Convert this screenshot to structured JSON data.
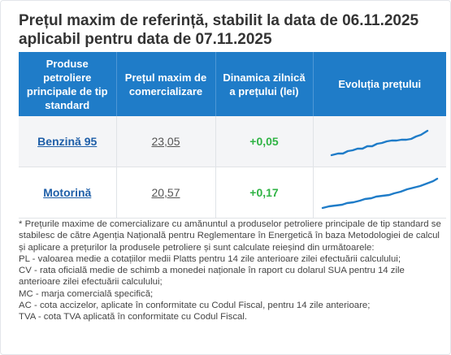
{
  "title": {
    "line1": "Prețul maxim de referință, stabilit la data de 06.11.2025",
    "line2": "aplicabil pentru data de 07.11.2025"
  },
  "table": {
    "headers": [
      "Produse petroliere principale de tip standard",
      "Prețul maxim de comercializare",
      "Dinamica zilnică a prețului (lei)",
      "Evoluția prețului"
    ],
    "rows": [
      {
        "product": "Benzină 95",
        "price": "23,05",
        "change": "+0,05",
        "trend_icon": "trend-line-up"
      },
      {
        "product": "Motorină",
        "price": "20,57",
        "change": "+0,17",
        "trend_icon": "trend-line-up"
      }
    ]
  },
  "notes": {
    "intro": "* Prețurile maxime de comercializare cu amănuntul a produselor petroliere principale de tip standard se stabilesc de către Agenția Națională pentru Reglementare în Energetică în baza Metodologiei de calcul și aplicare a prețurilor la produsele petroliere și sunt calculate reieșind din următoarele:",
    "pl": "PL - valoarea medie a cotațiilor medii Platts pentru 14 zile anterioare zilei efectuării calculului;",
    "cv": "CV - rata oficială medie de schimb a monedei naționale în raport cu dolarul SUA pentru 14 zile anterioare zilei efectuării calculului;",
    "mc": "MC - marja comercială specifică;",
    "ac": "AC - cota accizelor, aplicate în conformitate cu Codul Fiscal, pentru 14 zile anterioare;",
    "tva": "TVA - cota TVA aplicată în conformitate cu Codul Fiscal."
  },
  "colors": {
    "header_bg": "#1f7cc8",
    "link": "#1f5fa8",
    "positive": "#2fb344",
    "sparkline": "#1f7cc8"
  }
}
